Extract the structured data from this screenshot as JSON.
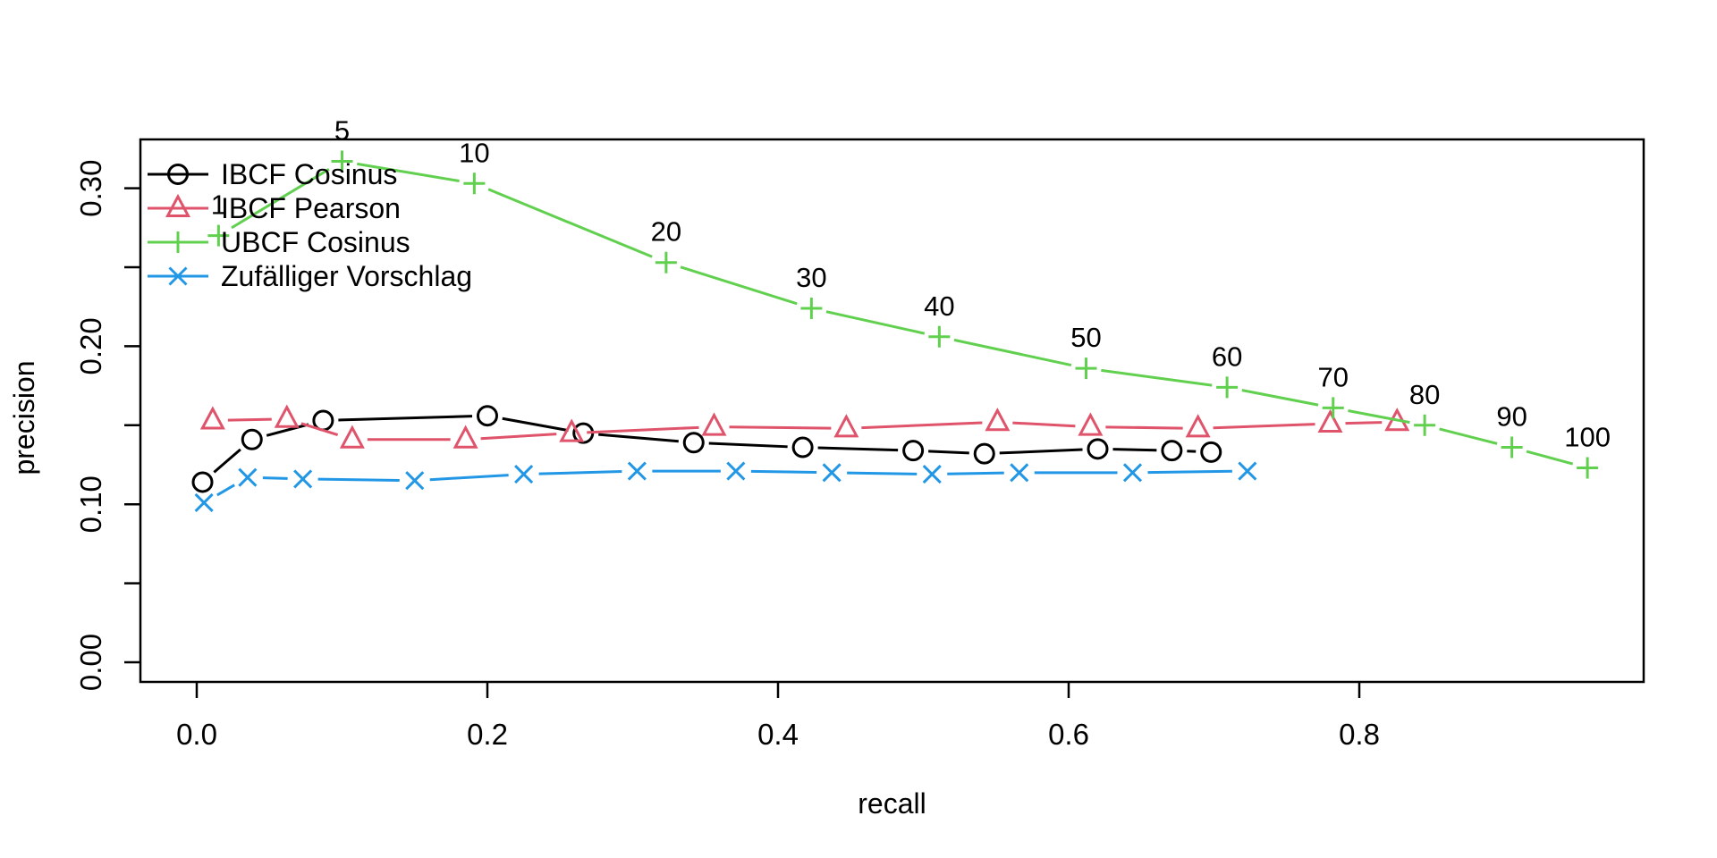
{
  "figure": {
    "background": "#ffffff",
    "text_color": "#000000"
  },
  "chart_data": {
    "type": "line",
    "title": "",
    "xlabel": "recall",
    "ylabel": "precision",
    "grid": false,
    "legend_position": "top-left",
    "xlim": [
      -0.039,
      0.996
    ],
    "ylim": [
      -0.012,
      0.331
    ],
    "x_ticks": [
      0.0,
      0.2,
      0.4,
      0.6,
      0.8
    ],
    "x_tick_labels": [
      "0.0",
      "0.2",
      "0.4",
      "0.6",
      "0.8"
    ],
    "y_ticks": [
      0.0,
      0.05,
      0.1,
      0.15,
      0.2,
      0.25,
      0.3
    ],
    "y_tick_labels": [
      "0.00",
      "",
      "0.10",
      "",
      "0.20",
      "",
      "0.30"
    ],
    "annotated_series": "UBCF Cosinus",
    "point_labels": [
      "1",
      "5",
      "10",
      "20",
      "30",
      "40",
      "50",
      "60",
      "70",
      "80",
      "90",
      "100"
    ],
    "series": [
      {
        "name": "IBCF Cosinus",
        "color": "#000000",
        "marker": "circle",
        "points": [
          [
            0.004,
            0.114
          ],
          [
            0.038,
            0.141
          ],
          [
            0.087,
            0.153
          ],
          [
            0.2,
            0.156
          ],
          [
            0.266,
            0.145
          ],
          [
            0.342,
            0.139
          ],
          [
            0.417,
            0.136
          ],
          [
            0.493,
            0.134
          ],
          [
            0.542,
            0.132
          ],
          [
            0.62,
            0.135
          ],
          [
            0.671,
            0.134
          ],
          [
            0.698,
            0.133
          ]
        ]
      },
      {
        "name": "IBCF Pearson",
        "color": "#DF536B",
        "marker": "triangle",
        "points": [
          [
            0.011,
            0.153
          ],
          [
            0.062,
            0.154
          ],
          [
            0.107,
            0.141
          ],
          [
            0.185,
            0.141
          ],
          [
            0.258,
            0.145
          ],
          [
            0.356,
            0.149
          ],
          [
            0.447,
            0.148
          ],
          [
            0.551,
            0.152
          ],
          [
            0.615,
            0.149
          ],
          [
            0.689,
            0.148
          ],
          [
            0.78,
            0.151
          ],
          [
            0.826,
            0.152
          ]
        ]
      },
      {
        "name": "UBCF Cosinus",
        "color": "#61D04F",
        "marker": "plus",
        "points": [
          [
            0.015,
            0.27
          ],
          [
            0.1,
            0.317
          ],
          [
            0.191,
            0.303
          ],
          [
            0.323,
            0.253
          ],
          [
            0.423,
            0.224
          ],
          [
            0.511,
            0.206
          ],
          [
            0.612,
            0.186
          ],
          [
            0.709,
            0.174
          ],
          [
            0.782,
            0.161
          ],
          [
            0.845,
            0.15
          ],
          [
            0.905,
            0.136
          ],
          [
            0.957,
            0.123
          ]
        ]
      },
      {
        "name": "Zufälliger Vorschlag",
        "color": "#2297E6",
        "marker": "x",
        "points": [
          [
            0.005,
            0.101
          ],
          [
            0.035,
            0.117
          ],
          [
            0.073,
            0.116
          ],
          [
            0.15,
            0.115
          ],
          [
            0.225,
            0.119
          ],
          [
            0.303,
            0.121
          ],
          [
            0.371,
            0.121
          ],
          [
            0.437,
            0.12
          ],
          [
            0.506,
            0.119
          ],
          [
            0.566,
            0.12
          ],
          [
            0.644,
            0.12
          ],
          [
            0.723,
            0.121
          ]
        ]
      }
    ]
  }
}
